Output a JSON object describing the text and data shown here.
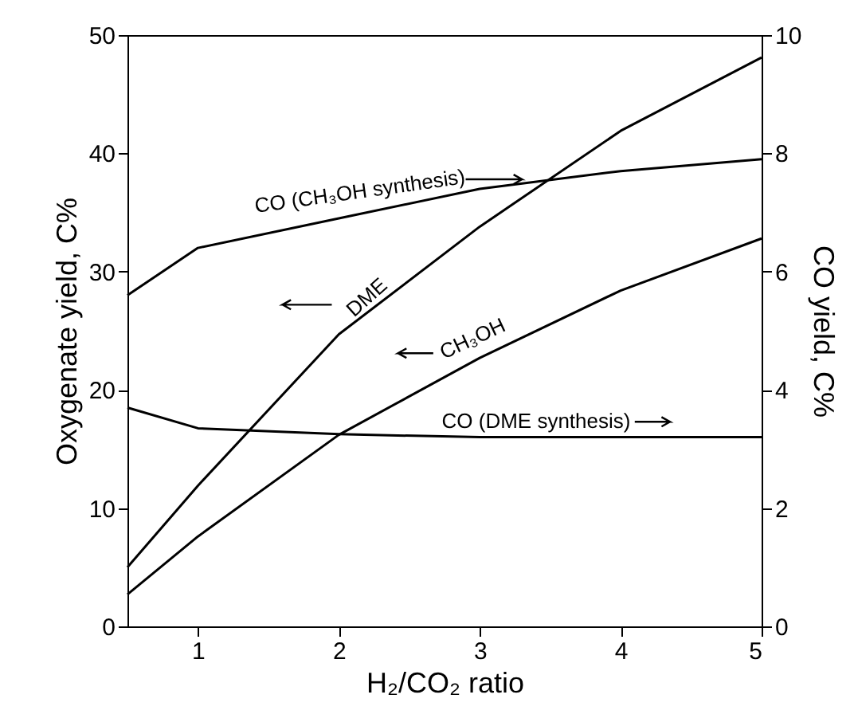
{
  "chart_data": {
    "type": "line",
    "xlabel": "H₂/CO₂ ratio",
    "ylabel": "Oxygenate yield, C%",
    "y2label": "CO yield, C%",
    "x": [
      0.5,
      1,
      2,
      3,
      4,
      5
    ],
    "xlim": [
      0.5,
      5
    ],
    "xticks": [
      1,
      2,
      3,
      4,
      5
    ],
    "ylim": [
      0,
      50
    ],
    "yticks": [
      0,
      10,
      20,
      30,
      40,
      50
    ],
    "y2lim": [
      0,
      10
    ],
    "y2ticks": [
      0,
      2,
      4,
      6,
      8,
      10
    ],
    "grid": false,
    "legend": "center",
    "marker": "none",
    "line_style": "solid",
    "series": [
      {
        "name": "CO (CH₃OH synthesis)",
        "color": "#000000",
        "axis": "y2",
        "values": [
          5.6,
          6.4,
          6.9,
          7.4,
          7.7,
          7.9
        ]
      },
      {
        "name": "DME",
        "color": "#000000",
        "values": [
          5.0,
          11.9,
          24.7,
          33.8,
          41.9,
          48.1
        ]
      },
      {
        "name": "CH₃OH",
        "color": "#000000",
        "values": [
          2.7,
          7.6,
          16.2,
          22.7,
          28.4,
          32.8
        ]
      },
      {
        "name": "CO (DME synthesis)",
        "color": "#000000",
        "axis": "y2",
        "values": [
          3.7,
          3.35,
          3.25,
          3.2,
          3.2,
          3.2
        ]
      }
    ]
  }
}
